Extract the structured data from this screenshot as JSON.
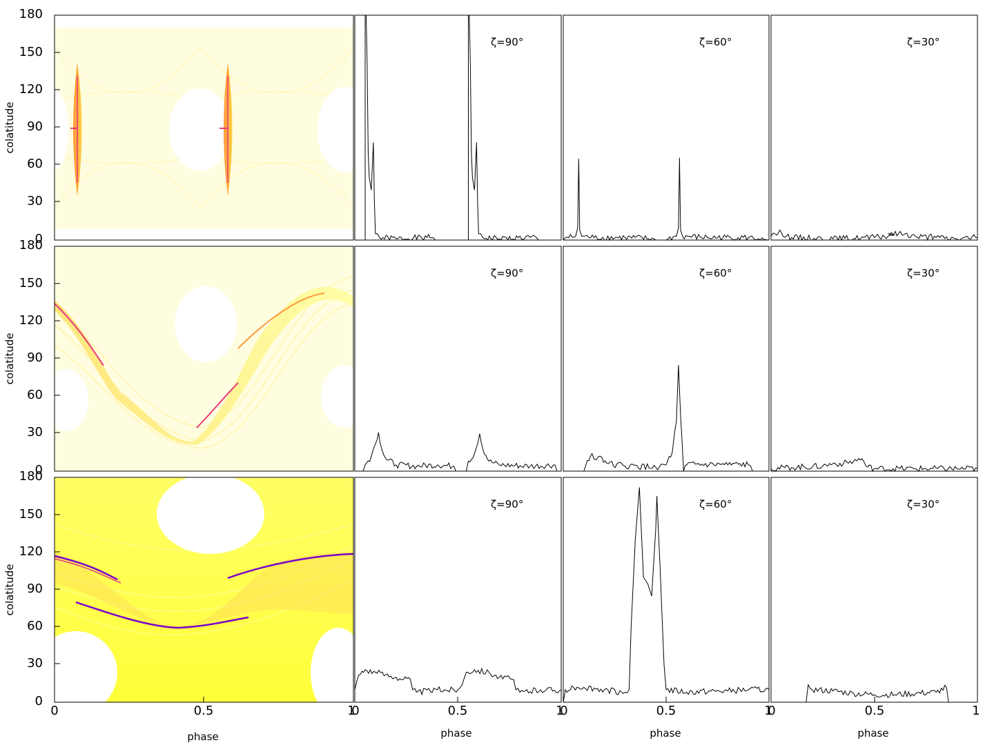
{
  "figure": {
    "row_labels": [
      "colatitude",
      "colatitude",
      "colatitude"
    ],
    "xlabel": "phase"
  },
  "chart_data": [
    {
      "type": "heatmap",
      "row": 0,
      "panel": "map",
      "xlabel": "phase",
      "ylabel": "colatitude",
      "xlim": [
        0,
        1
      ],
      "ylim": [
        0,
        180
      ],
      "x_ticks": [
        "0",
        "0.5",
        "1"
      ],
      "y_ticks": [
        "0",
        "30",
        "60",
        "90",
        "120",
        "150",
        "180"
      ],
      "colors": [
        "#ffffc8",
        "#ffff55",
        "#ffd24a",
        "#ff9a3c",
        "#e8387a",
        "#7a00c8"
      ],
      "features": {
        "caustic_phases": [
          0.08,
          0.57
        ],
        "caustic_colatitude_range": [
          55,
          130
        ]
      }
    },
    {
      "type": "line",
      "row": 0,
      "annotation": "ζ=90°",
      "xlim": [
        0,
        1
      ],
      "ylim": [
        0,
        180
      ],
      "points": [
        [
          0.0,
          0
        ],
        [
          0.05,
          0
        ],
        [
          0.05,
          180
        ],
        [
          0.055,
          180
        ],
        [
          0.06,
          140
        ],
        [
          0.065,
          70
        ],
        [
          0.07,
          50
        ],
        [
          0.08,
          40
        ],
        [
          0.09,
          78
        ],
        [
          0.095,
          30
        ],
        [
          0.1,
          5
        ],
        [
          0.11,
          5
        ],
        [
          0.12,
          2
        ],
        [
          0.2,
          1
        ],
        [
          0.35,
          2
        ],
        [
          0.38,
          2
        ],
        [
          0.39,
          0
        ],
        [
          0.55,
          0
        ],
        [
          0.55,
          180
        ],
        [
          0.555,
          180
        ],
        [
          0.56,
          140
        ],
        [
          0.565,
          70
        ],
        [
          0.57,
          50
        ],
        [
          0.58,
          40
        ],
        [
          0.59,
          78
        ],
        [
          0.595,
          30
        ],
        [
          0.6,
          5
        ],
        [
          0.61,
          5
        ],
        [
          0.62,
          2
        ],
        [
          0.7,
          1
        ],
        [
          0.85,
          2
        ],
        [
          0.88,
          2
        ],
        [
          0.89,
          0
        ],
        [
          1.0,
          0
        ]
      ]
    },
    {
      "type": "line",
      "row": 0,
      "annotation": "ζ=60°",
      "xlim": [
        0,
        1
      ],
      "ylim": [
        0,
        180
      ],
      "points": [
        [
          0.0,
          0
        ],
        [
          0.01,
          2
        ],
        [
          0.06,
          3
        ],
        [
          0.07,
          10
        ],
        [
          0.075,
          65
        ],
        [
          0.08,
          8
        ],
        [
          0.09,
          3
        ],
        [
          0.15,
          2
        ],
        [
          0.3,
          2
        ],
        [
          0.44,
          1
        ],
        [
          0.45,
          0
        ],
        [
          0.5,
          0
        ],
        [
          0.51,
          1
        ],
        [
          0.55,
          3
        ],
        [
          0.56,
          10
        ],
        [
          0.565,
          66
        ],
        [
          0.57,
          8
        ],
        [
          0.58,
          3
        ],
        [
          0.7,
          2
        ],
        [
          0.9,
          2
        ],
        [
          0.95,
          1
        ],
        [
          1.0,
          0
        ]
      ]
    },
    {
      "type": "line",
      "row": 0,
      "annotation": "ζ=30°",
      "xlim": [
        0,
        1
      ],
      "ylim": [
        0,
        180
      ],
      "points": [
        [
          0.0,
          3
        ],
        [
          0.02,
          5
        ],
        [
          0.05,
          6
        ],
        [
          0.1,
          2
        ],
        [
          0.3,
          1
        ],
        [
          0.5,
          2
        ],
        [
          0.6,
          4
        ],
        [
          0.57,
          5
        ],
        [
          0.65,
          5
        ],
        [
          0.7,
          3
        ],
        [
          0.8,
          2
        ],
        [
          0.9,
          1
        ],
        [
          1.0,
          2
        ]
      ]
    },
    {
      "type": "heatmap",
      "row": 1,
      "panel": "map",
      "xlabel": "phase",
      "ylabel": "colatitude",
      "xlim": [
        0,
        1
      ],
      "ylim": [
        0,
        180
      ],
      "x_ticks": [
        "0",
        "0.5",
        "1"
      ],
      "y_ticks": [
        "0",
        "30",
        "60",
        "90",
        "120",
        "150",
        "180"
      ],
      "colors": [
        "#ffffc8",
        "#ffff55",
        "#ffd24a",
        "#ff9a3c",
        "#e8387a",
        "#7a00c8"
      ]
    },
    {
      "type": "line",
      "row": 1,
      "annotation": "ζ=90°",
      "xlim": [
        0,
        1
      ],
      "ylim": [
        0,
        180
      ],
      "points": [
        [
          0.04,
          0
        ],
        [
          0.05,
          5
        ],
        [
          0.08,
          12
        ],
        [
          0.1,
          22
        ],
        [
          0.115,
          31
        ],
        [
          0.13,
          18
        ],
        [
          0.15,
          10
        ],
        [
          0.2,
          5
        ],
        [
          0.3,
          4
        ],
        [
          0.4,
          5
        ],
        [
          0.48,
          4
        ],
        [
          0.49,
          0
        ],
        [
          0.54,
          0
        ],
        [
          0.55,
          8
        ],
        [
          0.58,
          14
        ],
        [
          0.605,
          30
        ],
        [
          0.62,
          18
        ],
        [
          0.65,
          8
        ],
        [
          0.7,
          5
        ],
        [
          0.85,
          4
        ],
        [
          0.97,
          5
        ],
        [
          0.98,
          0
        ]
      ]
    },
    {
      "type": "line",
      "row": 1,
      "annotation": "ζ=60°",
      "xlim": [
        0,
        1
      ],
      "ylim": [
        0,
        180
      ],
      "points": [
        [
          0.1,
          0
        ],
        [
          0.11,
          5
        ],
        [
          0.14,
          14
        ],
        [
          0.16,
          9
        ],
        [
          0.18,
          12
        ],
        [
          0.22,
          6
        ],
        [
          0.3,
          4
        ],
        [
          0.45,
          3
        ],
        [
          0.5,
          5
        ],
        [
          0.53,
          15
        ],
        [
          0.55,
          40
        ],
        [
          0.56,
          85
        ],
        [
          0.57,
          45
        ],
        [
          0.585,
          0
        ],
        [
          0.6,
          5
        ],
        [
          0.8,
          5
        ],
        [
          0.9,
          5
        ],
        [
          0.92,
          0
        ]
      ]
    },
    {
      "type": "line",
      "row": 1,
      "annotation": "ζ=30°",
      "xlim": [
        0,
        1
      ],
      "ylim": [
        0,
        180
      ],
      "points": [
        [
          0.0,
          2
        ],
        [
          0.1,
          3
        ],
        [
          0.25,
          4
        ],
        [
          0.3,
          6
        ],
        [
          0.35,
          6
        ],
        [
          0.4,
          8
        ],
        [
          0.44,
          10
        ],
        [
          0.46,
          4
        ],
        [
          0.5,
          2
        ],
        [
          0.7,
          2
        ],
        [
          0.9,
          2
        ],
        [
          1.0,
          2
        ]
      ]
    },
    {
      "type": "heatmap",
      "row": 2,
      "panel": "map",
      "xlabel": "phase",
      "ylabel": "colatitude",
      "xlim": [
        0,
        1
      ],
      "ylim": [
        0,
        180
      ],
      "x_ticks": [
        "0",
        "0.5",
        "1"
      ],
      "y_ticks": [
        "0",
        "30",
        "60",
        "90",
        "120",
        "150",
        "180"
      ],
      "colors": [
        "#ffffc8",
        "#ffff55",
        "#ffd24a",
        "#ff9a3c",
        "#e8387a",
        "#7a00c8"
      ]
    },
    {
      "type": "line",
      "row": 2,
      "annotation": "ζ=90°",
      "xlim": [
        0,
        1
      ],
      "ylim": [
        0,
        180
      ],
      "points": [
        [
          0.0,
          10
        ],
        [
          0.02,
          22
        ],
        [
          0.05,
          26
        ],
        [
          0.1,
          24
        ],
        [
          0.15,
          22
        ],
        [
          0.2,
          20
        ],
        [
          0.27,
          18
        ],
        [
          0.28,
          10
        ],
        [
          0.3,
          8
        ],
        [
          0.4,
          10
        ],
        [
          0.5,
          10
        ],
        [
          0.52,
          14
        ],
        [
          0.54,
          24
        ],
        [
          0.58,
          26
        ],
        [
          0.65,
          24
        ],
        [
          0.7,
          20
        ],
        [
          0.77,
          18
        ],
        [
          0.78,
          10
        ],
        [
          0.8,
          8
        ],
        [
          0.9,
          10
        ],
        [
          1.0,
          10
        ]
      ]
    },
    {
      "type": "line",
      "row": 2,
      "annotation": "ζ=60°",
      "xlim": [
        0,
        1
      ],
      "ylim": [
        0,
        180
      ],
      "points": [
        [
          0.0,
          0
        ],
        [
          0.01,
          10
        ],
        [
          0.05,
          12
        ],
        [
          0.1,
          12
        ],
        [
          0.2,
          10
        ],
        [
          0.3,
          8
        ],
        [
          0.32,
          10
        ],
        [
          0.33,
          60
        ],
        [
          0.35,
          130
        ],
        [
          0.37,
          172
        ],
        [
          0.39,
          100
        ],
        [
          0.41,
          95
        ],
        [
          0.43,
          85
        ],
        [
          0.45,
          140
        ],
        [
          0.455,
          165
        ],
        [
          0.47,
          110
        ],
        [
          0.49,
          30
        ],
        [
          0.5,
          10
        ],
        [
          0.6,
          8
        ],
        [
          0.8,
          9
        ],
        [
          0.9,
          10
        ],
        [
          1.0,
          10
        ]
      ]
    },
    {
      "type": "line",
      "row": 2,
      "annotation": "ζ=30°",
      "xlim": [
        0,
        1
      ],
      "ylim": [
        0,
        180
      ],
      "points": [
        [
          0.17,
          0
        ],
        [
          0.18,
          14
        ],
        [
          0.2,
          10
        ],
        [
          0.3,
          9
        ],
        [
          0.4,
          7
        ],
        [
          0.5,
          6
        ],
        [
          0.6,
          6
        ],
        [
          0.7,
          7
        ],
        [
          0.8,
          8
        ],
        [
          0.85,
          12
        ],
        [
          0.86,
          0
        ]
      ]
    }
  ]
}
